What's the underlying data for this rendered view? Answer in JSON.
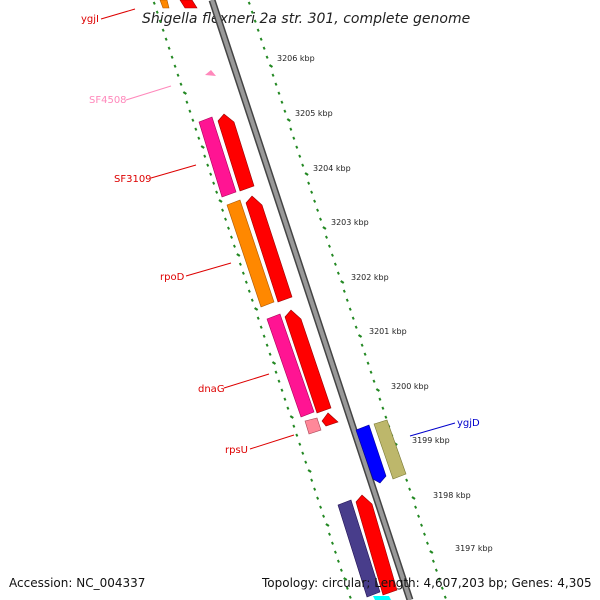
{
  "title": "Shigella flexneri 2a str. 301, complete genome",
  "footer": {
    "accession": "Accession: NC_004337",
    "summary": "Topology: circular; Length: 4,607,203 bp; Genes: 4,305"
  },
  "ruler": [
    {
      "label": "3206 kbp",
      "pos": 3206
    },
    {
      "label": "3205 kbp",
      "pos": 3205
    },
    {
      "label": "3204 kbp",
      "pos": 3204
    },
    {
      "label": "3203 kbp",
      "pos": 3203
    },
    {
      "label": "3202 kbp",
      "pos": 3202
    },
    {
      "label": "3201 kbp",
      "pos": 3201
    },
    {
      "label": "3200 kbp",
      "pos": 3200
    },
    {
      "label": "3199 kbp",
      "pos": 3199
    },
    {
      "label": "3198 kbp",
      "pos": 3198
    },
    {
      "label": "3197 kbp",
      "pos": 3197
    }
  ],
  "gene_labels": [
    {
      "name": "ygjI",
      "color": "#dd0000"
    },
    {
      "name": "SF4508",
      "color": "#ff88bb"
    },
    {
      "name": "SF3109",
      "color": "#dd0000"
    },
    {
      "name": "rpoD",
      "color": "#dd0000"
    },
    {
      "name": "dnaG",
      "color": "#dd0000"
    },
    {
      "name": "rpsU",
      "color": "#dd0000"
    },
    {
      "name": "ygjD",
      "color": "#0000cc"
    }
  ],
  "colors": {
    "backbone": "#888888",
    "tick_green": "#228822",
    "red": "#ff0000",
    "magenta": "#ff1493",
    "orange": "#ff8800",
    "pink": "#ff8899",
    "blue": "#0000ff",
    "khaki": "#bdb76b",
    "indigo": "#483d8b",
    "cyan": "#00ffff"
  }
}
